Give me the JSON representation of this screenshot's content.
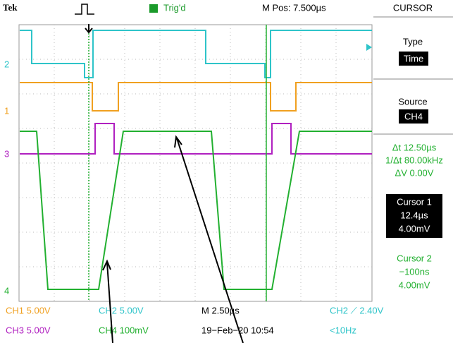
{
  "header": {
    "brand": "Tek",
    "trigger_status": "Trig'd",
    "position": "M Pos: 7.500µs",
    "menu_title": "CURSOR"
  },
  "menu": {
    "type_label": "Type",
    "type_value": "Time",
    "source_label": "Source",
    "source_value": "CH4",
    "delta_t": "Δt 12.50µs",
    "inv_delta_t": "1/Δt 80.00kHz",
    "delta_v": "ΔV 0.00V",
    "cursor1": {
      "label": "Cursor 1",
      "time": "12.4µs",
      "volts": "4.00mV"
    },
    "cursor2": {
      "label": "Cursor 2",
      "time": "−100ns",
      "volts": "4.00mV"
    }
  },
  "channel_markers": [
    "2",
    "1",
    "3",
    "4"
  ],
  "readouts": {
    "ch1": "CH1 5.00V",
    "ch2": "CH2 5.00V",
    "timebase": "M 2.50µs",
    "trigger": "CH2 ⟋ 2.40V",
    "ch3": "CH3 5.00V",
    "ch4": "CH4 100mV",
    "datetime": "19−Feb−20 10:54",
    "frequency": "<10Hz"
  }
}
